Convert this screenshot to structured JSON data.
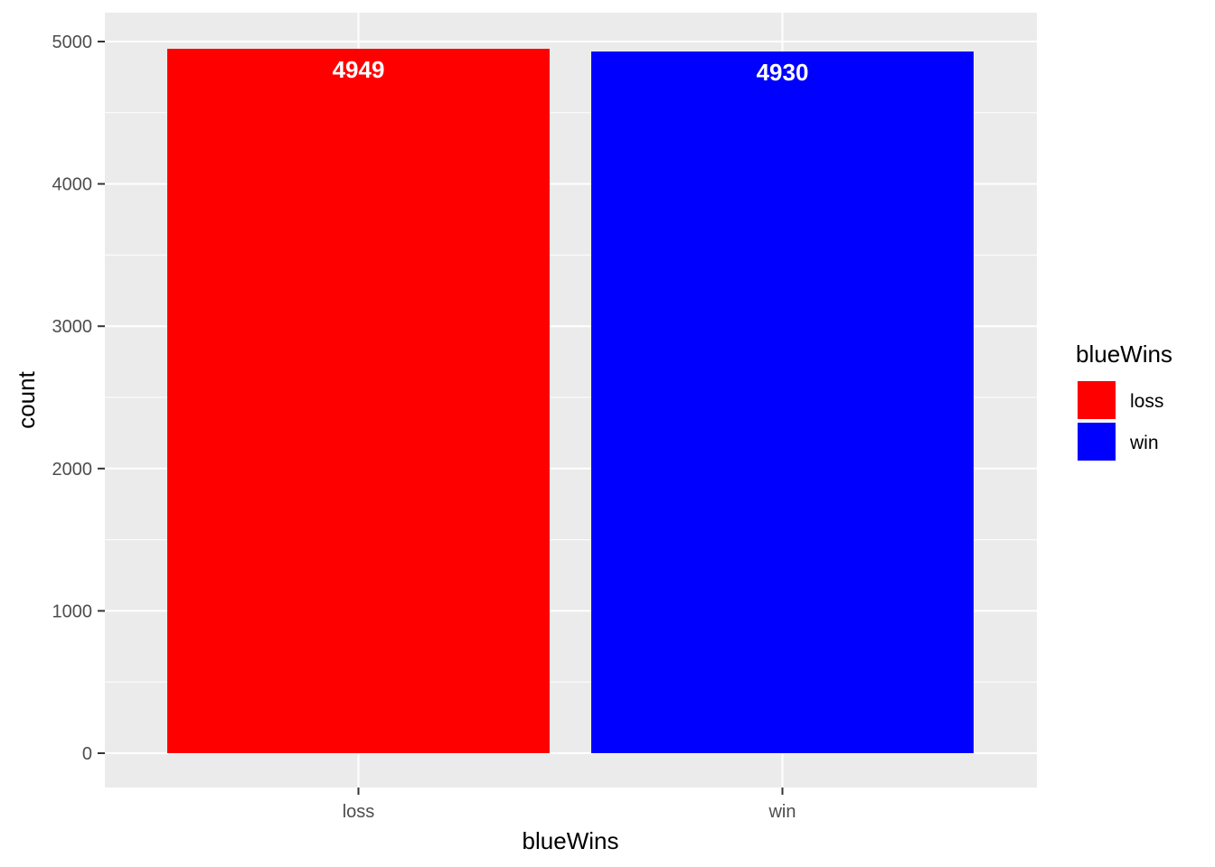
{
  "chart_data": {
    "type": "bar",
    "categories": [
      "loss",
      "win"
    ],
    "values": [
      4949,
      4930
    ],
    "data_labels": [
      "4949",
      "4930"
    ],
    "colors": [
      "#ff0000",
      "#0000ff"
    ],
    "xlabel": "blueWins",
    "ylabel": "count",
    "ylim": [
      0,
      5000
    ],
    "y_ticks": [
      0,
      1000,
      2000,
      3000,
      4000,
      5000
    ],
    "y_tick_labels": [
      "0",
      "1000",
      "2000",
      "3000",
      "4000",
      "5000"
    ],
    "grid": true,
    "panel_background": "#ebebeb",
    "legend": {
      "title": "blueWins",
      "placement": "right",
      "entries": [
        {
          "label": "loss",
          "color": "#ff0000"
        },
        {
          "label": "win",
          "color": "#0000ff"
        }
      ]
    }
  }
}
